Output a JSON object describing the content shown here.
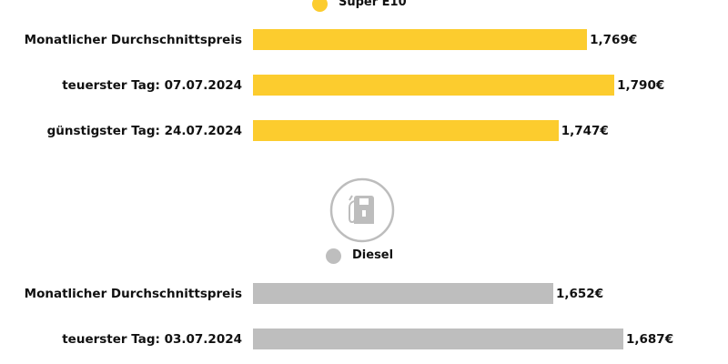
{
  "colors": {
    "e10": "#FCCC2E",
    "diesel": "#BEBEBE",
    "icon": "#BDBDBD"
  },
  "chart_data": [
    {
      "type": "bar",
      "orientation": "horizontal",
      "legend": "Super E10",
      "categories": [
        "Monatlicher Durchschnittspreis",
        "teuerster Tag: 07.07.2024",
        "günstigster Tag: 24.07.2024"
      ],
      "values": [
        1.769,
        1.79,
        1.747
      ],
      "data_labels": [
        "1,769€",
        "1,790€",
        "1,747€"
      ]
    },
    {
      "type": "bar",
      "orientation": "horizontal",
      "legend": "Diesel",
      "icon": "fuel-pump-icon",
      "categories": [
        "Monatlicher Durchschnittspreis",
        "teuerster Tag: 03.07.2024"
      ],
      "values": [
        1.652,
        1.687
      ],
      "data_labels": [
        "1,652€",
        "1,687€"
      ]
    }
  ]
}
